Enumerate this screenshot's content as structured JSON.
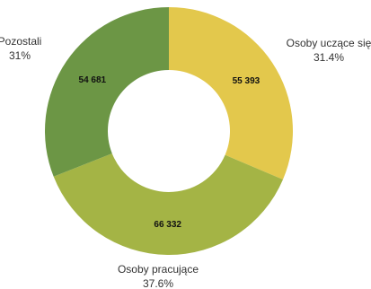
{
  "chart_data": {
    "type": "pie",
    "variant": "donut",
    "legend": "none",
    "slices": [
      {
        "name": "Osoby uczące się",
        "value": 55393,
        "value_label": "55 393",
        "percent_label": "31.4%",
        "color": "#e3c84c"
      },
      {
        "name": "Osoby pracujące",
        "value": 66332,
        "value_label": "66 332",
        "percent_label": "37.6%",
        "color": "#a4b445"
      },
      {
        "name": "Pozostali",
        "value": 54681,
        "value_label": "54 681",
        "percent_label": "31%",
        "color": "#6c9645"
      }
    ]
  }
}
